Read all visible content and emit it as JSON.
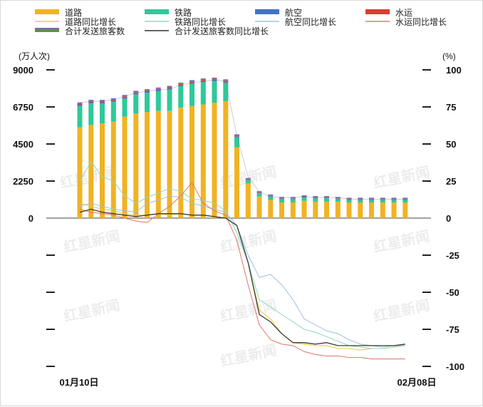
{
  "chart_data": {
    "type": "bar+line",
    "y_left_unit": "(万人次)",
    "y_right_unit": "(%)",
    "y_left_ticks": [
      "9000",
      "6750",
      "4500",
      "2250",
      "0"
    ],
    "y_left_range": [
      -9000,
      9000
    ],
    "y_right_ticks": [
      "100",
      "75",
      "50",
      "25",
      "0",
      "-25",
      "-50",
      "-75",
      "-100"
    ],
    "y_right_range": [
      -100,
      100
    ],
    "x_labels": [
      "01月10日",
      "02月08日"
    ],
    "bar_series": [
      {
        "name": "道路",
        "color": "#f0b323",
        "values": [
          5500,
          5650,
          5750,
          5850,
          6150,
          6350,
          6450,
          6500,
          6500,
          6700,
          6800,
          6900,
          7000,
          7100,
          4300,
          2100,
          1300,
          1100,
          950,
          950,
          1050,
          1000,
          1000,
          1000,
          950,
          950,
          950,
          950,
          950,
          950
        ]
      },
      {
        "name": "铁路",
        "color": "#2ec99a",
        "values": [
          1300,
          1300,
          1200,
          1200,
          1100,
          1150,
          1150,
          1200,
          1300,
          1300,
          1350,
          1350,
          1300,
          1100,
          600,
          200,
          200,
          200,
          200,
          200,
          200,
          200,
          200,
          150,
          150,
          150,
          150,
          150,
          150,
          150
        ]
      },
      {
        "name": "航空",
        "color": "#4472c4",
        "values": [
          80,
          80,
          80,
          80,
          80,
          80,
          80,
          80,
          80,
          80,
          80,
          80,
          80,
          80,
          60,
          30,
          30,
          30,
          30,
          30,
          30,
          30,
          30,
          30,
          30,
          30,
          30,
          30,
          30,
          30
        ]
      },
      {
        "name": "水运",
        "color": "#e03c31",
        "values": [
          60,
          60,
          60,
          60,
          60,
          60,
          60,
          60,
          60,
          60,
          60,
          60,
          60,
          60,
          40,
          20,
          20,
          20,
          20,
          20,
          20,
          20,
          20,
          20,
          20,
          20,
          20,
          20,
          20,
          20
        ]
      }
    ],
    "line_series": [
      {
        "name": "道路同比增长",
        "color": "#e8c84a",
        "values": [
          10,
          8,
          6,
          5,
          3,
          2,
          2,
          3,
          2,
          3,
          2,
          2,
          1,
          0,
          -5,
          -30,
          -62,
          -68,
          -78,
          -84,
          -85,
          -86,
          -86,
          -88,
          -88,
          -89,
          -88,
          -88,
          -87,
          -86
        ]
      },
      {
        "name": "铁路同比增长",
        "color": "#8fd9c6",
        "values": [
          25,
          38,
          28,
          25,
          15,
          10,
          14,
          17,
          20,
          18,
          13,
          12,
          10,
          5,
          -10,
          -30,
          -55,
          -60,
          -65,
          -70,
          -75,
          -77,
          -80,
          -83,
          -86,
          -87,
          -88,
          -88,
          -87,
          -85
        ]
      },
      {
        "name": "航空同比增长",
        "color": "#9cc3e0",
        "values": [
          8,
          10,
          8,
          6,
          5,
          4,
          10,
          12,
          15,
          14,
          10,
          8,
          6,
          4,
          -5,
          -25,
          -40,
          -38,
          -45,
          -55,
          -68,
          -72,
          -76,
          -78,
          -82,
          -85,
          -86,
          -87,
          -86,
          -86
        ]
      },
      {
        "name": "水运同比增长",
        "color": "#e07b6a",
        "values": [
          6,
          4,
          3,
          2,
          0,
          -2,
          -3,
          3,
          8,
          15,
          24,
          10,
          5,
          2,
          -15,
          -45,
          -72,
          -82,
          -85,
          -86,
          -90,
          -92,
          -93,
          -93,
          -94,
          -94,
          -95,
          -95,
          -95,
          -95
        ]
      },
      {
        "name": "合计发送旅客数",
        "color": "#7a7a7a",
        "values": [
          7000,
          7100,
          7100,
          7200,
          7400,
          7600,
          7700,
          7800,
          7800,
          8100,
          8200,
          8300,
          8400,
          8300,
          5000,
          2500,
          1600,
          1300,
          1250,
          1250,
          1300,
          1250,
          1250,
          1250,
          1150,
          1150,
          1150,
          1150,
          1150,
          1150
        ]
      },
      {
        "name": "合计发送旅客数同比增长",
        "color": "#333333",
        "values": [
          4,
          6,
          4,
          3,
          2,
          1,
          2,
          3,
          3,
          3,
          2,
          2,
          1,
          0,
          -5,
          -30,
          -65,
          -70,
          -78,
          -84,
          -84,
          -85,
          -84,
          -86,
          -86,
          -86,
          -86,
          -86,
          -86,
          -85
        ]
      }
    ]
  },
  "watermark": "红星新闻"
}
